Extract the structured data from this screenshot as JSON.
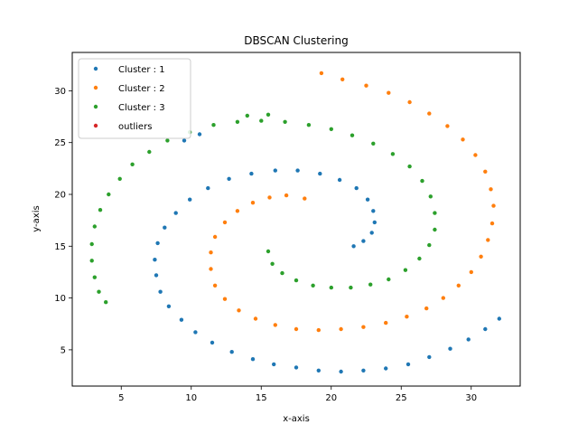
{
  "chart_data": {
    "type": "scatter",
    "title": "DBSCAN Clustering",
    "xlabel": "x-axis",
    "ylabel": "y-axis",
    "xlim": [
      1.5,
      33.5
    ],
    "ylim": [
      1.5,
      33.7
    ],
    "xticks": [
      5,
      10,
      15,
      20,
      25,
      30
    ],
    "yticks": [
      5,
      10,
      15,
      20,
      25,
      30
    ],
    "grid": false,
    "legend_position": "top-left",
    "series": [
      {
        "name": "Cluster : 1",
        "color": "#1f77b4",
        "points": [
          [
            21.6,
            15.0
          ],
          [
            22.3,
            15.5
          ],
          [
            22.9,
            16.3
          ],
          [
            23.1,
            17.3
          ],
          [
            23.0,
            18.4
          ],
          [
            22.6,
            19.5
          ],
          [
            21.8,
            20.6
          ],
          [
            20.6,
            21.4
          ],
          [
            19.2,
            22.0
          ],
          [
            17.6,
            22.3
          ],
          [
            16.0,
            22.3
          ],
          [
            14.3,
            22.0
          ],
          [
            12.7,
            21.5
          ],
          [
            11.2,
            20.6
          ],
          [
            9.9,
            19.5
          ],
          [
            8.9,
            18.2
          ],
          [
            8.1,
            16.8
          ],
          [
            7.6,
            15.3
          ],
          [
            7.4,
            13.7
          ],
          [
            7.5,
            12.2
          ],
          [
            7.8,
            10.6
          ],
          [
            8.4,
            9.2
          ],
          [
            9.3,
            7.9
          ],
          [
            10.3,
            6.7
          ],
          [
            11.5,
            5.7
          ],
          [
            12.9,
            4.8
          ],
          [
            14.4,
            4.1
          ],
          [
            15.9,
            3.6
          ],
          [
            17.5,
            3.3
          ],
          [
            19.1,
            3.0
          ],
          [
            20.7,
            2.9
          ],
          [
            22.3,
            3.0
          ],
          [
            23.9,
            3.2
          ],
          [
            25.5,
            3.6
          ],
          [
            27.0,
            4.3
          ],
          [
            28.5,
            5.1
          ],
          [
            29.8,
            6.0
          ],
          [
            31.0,
            7.0
          ],
          [
            32.0,
            8.0
          ],
          [
            9.5,
            25.2
          ],
          [
            10.6,
            25.8
          ]
        ]
      },
      {
        "name": "Cluster : 2",
        "color": "#ff7f0e",
        "points": [
          [
            18.1,
            19.6
          ],
          [
            16.8,
            19.9
          ],
          [
            15.6,
            19.7
          ],
          [
            14.4,
            19.2
          ],
          [
            13.3,
            18.4
          ],
          [
            12.4,
            17.3
          ],
          [
            11.7,
            15.9
          ],
          [
            11.4,
            14.4
          ],
          [
            11.4,
            12.8
          ],
          [
            11.7,
            11.2
          ],
          [
            12.4,
            9.9
          ],
          [
            13.4,
            8.8
          ],
          [
            14.6,
            8.0
          ],
          [
            16.0,
            7.4
          ],
          [
            17.5,
            7.0
          ],
          [
            19.1,
            6.9
          ],
          [
            20.7,
            7.0
          ],
          [
            22.3,
            7.2
          ],
          [
            23.9,
            7.6
          ],
          [
            25.4,
            8.2
          ],
          [
            26.8,
            9.0
          ],
          [
            28.0,
            10.0
          ],
          [
            29.1,
            11.2
          ],
          [
            30.0,
            12.5
          ],
          [
            30.7,
            14.0
          ],
          [
            31.2,
            15.6
          ],
          [
            31.5,
            17.2
          ],
          [
            31.6,
            18.9
          ],
          [
            31.4,
            20.5
          ],
          [
            31.0,
            22.2
          ],
          [
            30.3,
            23.8
          ],
          [
            29.4,
            25.3
          ],
          [
            28.3,
            26.6
          ],
          [
            27.0,
            27.8
          ],
          [
            25.6,
            28.9
          ],
          [
            24.1,
            29.8
          ],
          [
            22.5,
            30.5
          ],
          [
            20.8,
            31.1
          ],
          [
            19.3,
            31.7
          ]
        ]
      },
      {
        "name": "Cluster : 3",
        "color": "#2ca02c",
        "points": [
          [
            15.5,
            14.5
          ],
          [
            15.8,
            13.3
          ],
          [
            16.5,
            12.4
          ],
          [
            17.5,
            11.7
          ],
          [
            18.7,
            11.2
          ],
          [
            20.0,
            11.0
          ],
          [
            21.4,
            11.0
          ],
          [
            22.8,
            11.3
          ],
          [
            24.1,
            11.8
          ],
          [
            25.3,
            12.7
          ],
          [
            26.3,
            13.8
          ],
          [
            27.0,
            15.1
          ],
          [
            27.4,
            16.6
          ],
          [
            27.4,
            18.2
          ],
          [
            27.1,
            19.8
          ],
          [
            26.5,
            21.3
          ],
          [
            25.6,
            22.7
          ],
          [
            24.4,
            23.9
          ],
          [
            23.0,
            24.9
          ],
          [
            21.5,
            25.7
          ],
          [
            20.0,
            26.3
          ],
          [
            18.4,
            26.7
          ],
          [
            16.7,
            27.0
          ],
          [
            15.0,
            27.1
          ],
          [
            13.3,
            27.0
          ],
          [
            11.6,
            26.7
          ],
          [
            9.9,
            26.0
          ],
          [
            8.3,
            25.2
          ],
          [
            7.0,
            24.1
          ],
          [
            5.8,
            22.9
          ],
          [
            4.9,
            21.5
          ],
          [
            4.1,
            20.0
          ],
          [
            3.5,
            18.5
          ],
          [
            3.1,
            16.9
          ],
          [
            2.9,
            15.2
          ],
          [
            2.9,
            13.6
          ],
          [
            3.1,
            12.0
          ],
          [
            3.4,
            10.6
          ],
          [
            3.9,
            9.6
          ],
          [
            14.0,
            27.6
          ],
          [
            15.5,
            27.7
          ]
        ]
      },
      {
        "name": "outliers",
        "color": "#d62728",
        "points": []
      }
    ]
  }
}
